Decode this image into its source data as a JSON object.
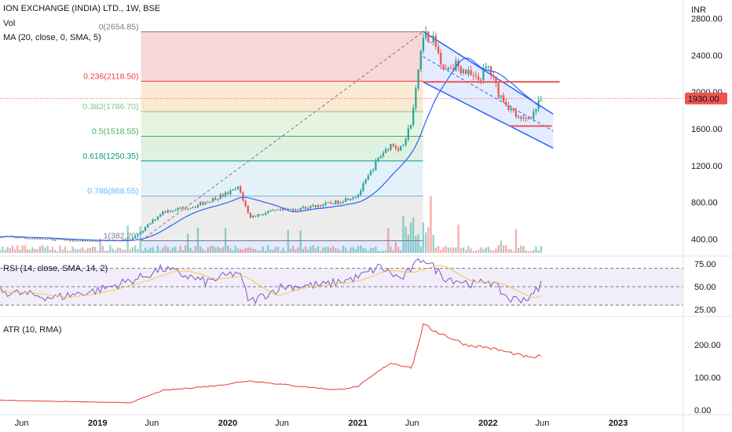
{
  "header": {
    "title": "ION EXCHANGE (INDIA) LTD., 1W, BSE",
    "vol_label": "Vol",
    "ma_label": "MA (20, close, 0, SMA, 5)",
    "rsi_label": "RSI (14, close, SMA, 14, 2)",
    "atr_label": "ATR (10, RMA)",
    "currency": "INR"
  },
  "colors": {
    "up": "#26a69a",
    "down": "#ef5350",
    "ma": "#2962ff",
    "rsi": "#7e57c2",
    "rsi_ma": "#f2c94c",
    "atr": "#e53935",
    "channel": "#2962ff",
    "price_label_bg": "#ef5350"
  },
  "chart_data": [
    {
      "type": "candlestick",
      "name": "price",
      "x_axis": {
        "ticks": [
          "Jun",
          "2019",
          "Jun",
          "2020",
          "Jun",
          "2021",
          "Jun",
          "2022",
          "Jun",
          "2023"
        ],
        "range": [
          "2018-04",
          "2023-07"
        ]
      },
      "y_axis": {
        "ticks": [
          "400.00",
          "800.00",
          "1200.00",
          "1600.00",
          "2000.00",
          "2400.00",
          "2800.00"
        ],
        "ylim": [
          250,
          2950
        ]
      },
      "last_price": "1930.00",
      "anchors": [
        {
          "t": "2018-04",
          "v": 430
        },
        {
          "t": "2018-08",
          "v": 400
        },
        {
          "t": "2018-12",
          "v": 380
        },
        {
          "t": "2019-04",
          "v": 390
        },
        {
          "t": "2019-05",
          "v": 480
        },
        {
          "t": "2019-07",
          "v": 700
        },
        {
          "t": "2019-10",
          "v": 760
        },
        {
          "t": "2020-01",
          "v": 900
        },
        {
          "t": "2020-02",
          "v": 960
        },
        {
          "t": "2020-03",
          "v": 640
        },
        {
          "t": "2020-05",
          "v": 700
        },
        {
          "t": "2020-08",
          "v": 740
        },
        {
          "t": "2020-11",
          "v": 800
        },
        {
          "t": "2021-01",
          "v": 880
        },
        {
          "t": "2021-03",
          "v": 1300
        },
        {
          "t": "2021-04",
          "v": 1430
        },
        {
          "t": "2021-05",
          "v": 1380
        },
        {
          "t": "2021-06",
          "v": 1700
        },
        {
          "t": "2021-07",
          "v": 2654
        },
        {
          "t": "2021-08",
          "v": 2550
        },
        {
          "t": "2021-09",
          "v": 2250
        },
        {
          "t": "2021-10",
          "v": 2300
        },
        {
          "t": "2021-12",
          "v": 2120
        },
        {
          "t": "2022-01",
          "v": 2280
        },
        {
          "t": "2022-02",
          "v": 1980
        },
        {
          "t": "2022-04",
          "v": 1680
        },
        {
          "t": "2022-05",
          "v": 1750
        },
        {
          "t": "2022-06",
          "v": 1930
        }
      ],
      "fibonacci": [
        {
          "level": "0(2654.85)",
          "value": 2654.85,
          "color": "#787b86",
          "fill": "#f7c9c9"
        },
        {
          "level": "0.236(2118.50)",
          "value": 2118.5,
          "color": "#f23645",
          "fill": "#f9e3c4"
        },
        {
          "level": "0.382(1786.70)",
          "value": 1786.7,
          "color": "#81c784",
          "fill": "#def2d7"
        },
        {
          "level": "0.5(1518.55)",
          "value": 1518.55,
          "color": "#4caf50",
          "fill": "#d3ecd9"
        },
        {
          "level": "0.618(1250.35)",
          "value": 1250.35,
          "color": "#089981",
          "fill": "#dcecf7"
        },
        {
          "level": "0.786(868.55)",
          "value": 868.55,
          "color": "#64b5f6",
          "fill": "#e5e5e5"
        },
        {
          "level": "1(382.20)",
          "value": 382.2,
          "color": "#787b86",
          "fill": "#dbe3fb"
        }
      ],
      "fib_range": {
        "start": "2019-05",
        "end": "2021-07"
      },
      "channel": {
        "upper": [
          {
            "t": "2021-07",
            "v": 2660
          },
          {
            "t": "2022-07",
            "v": 1760
          }
        ],
        "lower": [
          {
            "t": "2021-07",
            "v": 2110
          },
          {
            "t": "2022-07",
            "v": 1390
          }
        ]
      },
      "resistance": {
        "start": "2021-07",
        "end": "2022-06",
        "value": 2110
      },
      "support": {
        "start": "2022-03",
        "end": "2022-06",
        "value": 1630
      }
    },
    {
      "type": "line",
      "name": "RSI",
      "y_axis": {
        "ticks": [
          "25.00",
          "50.00",
          "75.00"
        ],
        "ylim": [
          20,
          80
        ]
      },
      "bands": [
        30,
        50,
        70
      ],
      "anchors": [
        {
          "t": "2018-04",
          "v": 45
        },
        {
          "t": "2018-09",
          "v": 38
        },
        {
          "t": "2019-01",
          "v": 46
        },
        {
          "t": "2019-05",
          "v": 60
        },
        {
          "t": "2019-07",
          "v": 70
        },
        {
          "t": "2019-11",
          "v": 55
        },
        {
          "t": "2020-02",
          "v": 66
        },
        {
          "t": "2020-03",
          "v": 33
        },
        {
          "t": "2020-06",
          "v": 50
        },
        {
          "t": "2020-10",
          "v": 52
        },
        {
          "t": "2021-01",
          "v": 60
        },
        {
          "t": "2021-03",
          "v": 72
        },
        {
          "t": "2021-05",
          "v": 58
        },
        {
          "t": "2021-07",
          "v": 82
        },
        {
          "t": "2021-09",
          "v": 60
        },
        {
          "t": "2021-12",
          "v": 52
        },
        {
          "t": "2022-01",
          "v": 58
        },
        {
          "t": "2022-03",
          "v": 36
        },
        {
          "t": "2022-05",
          "v": 38
        },
        {
          "t": "2022-06",
          "v": 56
        }
      ]
    },
    {
      "type": "line",
      "name": "ATR",
      "y_axis": {
        "ticks": [
          "0.00",
          "100.00",
          "200.00"
        ],
        "ylim": [
          -5,
          280
        ]
      },
      "anchors": [
        {
          "t": "2018-04",
          "v": 30
        },
        {
          "t": "2019-04",
          "v": 22
        },
        {
          "t": "2019-07",
          "v": 60
        },
        {
          "t": "2019-12",
          "v": 75
        },
        {
          "t": "2020-03",
          "v": 90
        },
        {
          "t": "2020-07",
          "v": 75
        },
        {
          "t": "2020-11",
          "v": 62
        },
        {
          "t": "2021-01",
          "v": 72
        },
        {
          "t": "2021-04",
          "v": 145
        },
        {
          "t": "2021-06",
          "v": 130
        },
        {
          "t": "2021-07",
          "v": 260
        },
        {
          "t": "2021-11",
          "v": 200
        },
        {
          "t": "2022-01",
          "v": 192
        },
        {
          "t": "2022-05",
          "v": 160
        },
        {
          "t": "2022-06",
          "v": 168
        }
      ]
    }
  ]
}
